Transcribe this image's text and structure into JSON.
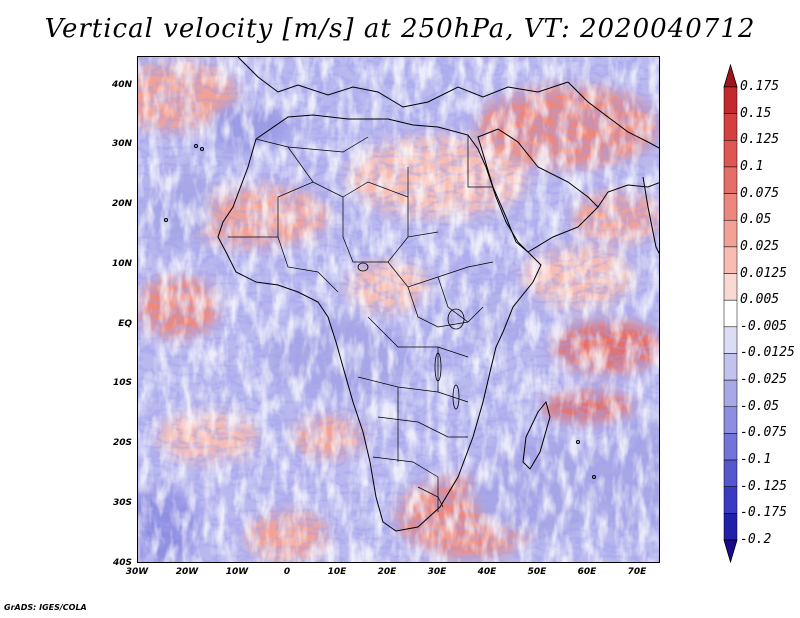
{
  "title": "Vertical velocity [m/s] at 250hPa, VT: 2020040712",
  "footer": "GrADS: IGES/COLA",
  "axes": {
    "lat_ticks": [
      "40N",
      "30N",
      "20N",
      "10N",
      "EQ",
      "10S",
      "20S",
      "30S",
      "40S"
    ],
    "lon_ticks": [
      "30W",
      "20W",
      "10W",
      "0",
      "10E",
      "20E",
      "30E",
      "40E",
      "50E",
      "60E",
      "70E"
    ]
  },
  "colorbar": {
    "labels": [
      "0.175",
      "0.15",
      "0.125",
      "0.1",
      "0.075",
      "0.05",
      "0.025",
      "0.0125",
      "0.005",
      "-0.005",
      "-0.0125",
      "-0.025",
      "-0.05",
      "-0.075",
      "-0.1",
      "-0.125",
      "-0.175",
      "-0.2"
    ],
    "colors": [
      "#a0141e",
      "#c22a2e",
      "#d4403f",
      "#de5752",
      "#e56e67",
      "#ec877d",
      "#f2a196",
      "#f7bcb2",
      "#fbd9d3",
      "#ffffff",
      "#dcdcf5",
      "#c2c2ee",
      "#a8a8e6",
      "#8e8ee0",
      "#7373d9",
      "#5656cf",
      "#3a3ac2",
      "#2020a8",
      "#1a0a8c"
    ]
  },
  "legend_colors": {
    "positive": "#de5752",
    "negative": "#7373d9",
    "neutral": "#ffffff"
  }
}
